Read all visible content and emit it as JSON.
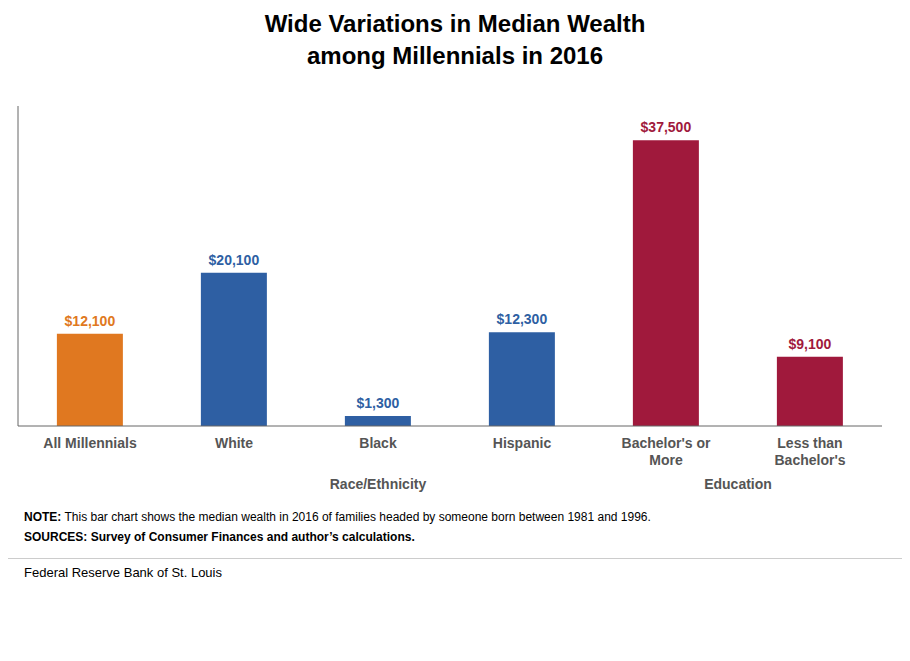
{
  "chart_data": {
    "type": "bar",
    "title": "Wide Variations in Median Wealth\namong Millennials in 2016",
    "categories": [
      "All Millennials",
      "White",
      "Black",
      "Hispanic",
      "Bachelor's or\nMore",
      "Less than\nBachelor's"
    ],
    "values": [
      12100,
      20100,
      1300,
      12300,
      37500,
      9100
    ],
    "value_labels": [
      "$12,100",
      "$20,100",
      "$1,300",
      "$12,300",
      "$37,500",
      "$9,100"
    ],
    "data_labels": true,
    "colors": [
      "#E07820",
      "#2E5FA3",
      "#2E5FA3",
      "#2E5FA3",
      "#A0193C",
      "#A0193C"
    ],
    "ylim": [
      0,
      42000
    ],
    "yticks": [],
    "tick_labels": "x",
    "grid": false,
    "annotations": [
      "Race/Ethnicity",
      "Education"
    ],
    "note": "NOTE: This bar chart shows the median wealth in 2016 of families headed by someone born between 1981 and 1996.",
    "sources": "SOURCES: Survey of Consumer Finances and author’s calculations.",
    "footer": "Federal Reserve Bank of St. Louis"
  }
}
